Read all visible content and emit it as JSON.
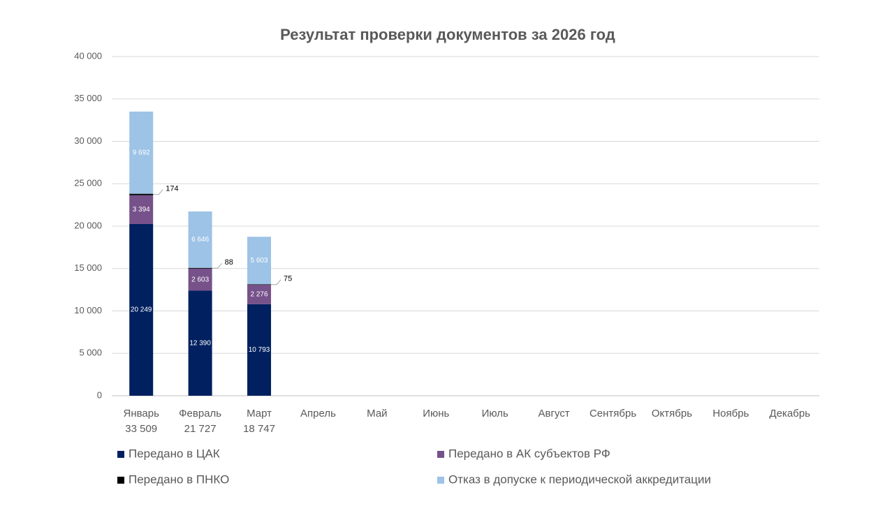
{
  "chart_data": {
    "type": "stacked_bar",
    "title": "Результат проверки документов за 2026 год",
    "categories": [
      "Январь",
      "Февраль",
      "Март",
      "Апрель",
      "Май",
      "Июнь",
      "Июль",
      "Август",
      "Сентябрь",
      "Октябрь",
      "Ноябрь",
      "Декабрь"
    ],
    "category_totals": [
      "33 509",
      "21 727",
      "18 747",
      null,
      null,
      null,
      null,
      null,
      null,
      null,
      null,
      null
    ],
    "series": [
      {
        "name": "Передано в ЦАК",
        "color": "#002060",
        "values": [
          20249,
          12390,
          10793,
          null,
          null,
          null,
          null,
          null,
          null,
          null,
          null,
          null
        ],
        "value_labels": [
          "20 249",
          "12 390",
          "10 793",
          null,
          null,
          null,
          null,
          null,
          null,
          null,
          null,
          null
        ]
      },
      {
        "name": "Передано в АК субъектов РФ",
        "color": "#76518a",
        "values": [
          3394,
          2603,
          2276,
          null,
          null,
          null,
          null,
          null,
          null,
          null,
          null,
          null
        ],
        "value_labels": [
          "3 394",
          "2 603",
          "2 276",
          null,
          null,
          null,
          null,
          null,
          null,
          null,
          null,
          null
        ]
      },
      {
        "name": "Передано в ПНКО",
        "color": "#000000",
        "values": [
          174,
          88,
          75,
          null,
          null,
          null,
          null,
          null,
          null,
          null,
          null,
          null
        ],
        "label_outside": true
      },
      {
        "name": "Отказ в допуске к периодической аккредитации",
        "color": "#9dc3e6",
        "values": [
          9692,
          6646,
          5603,
          null,
          null,
          null,
          null,
          null,
          null,
          null,
          null,
          null
        ],
        "value_labels": [
          "9 692",
          "6 646",
          "5 603",
          null,
          null,
          null,
          null,
          null,
          null,
          null,
          null,
          null
        ]
      }
    ],
    "ylim": [
      0,
      40000
    ],
    "yticks": [
      {
        "value": 0,
        "label": "0"
      },
      {
        "value": 5000,
        "label": "5 000"
      },
      {
        "value": 10000,
        "label": "10 000"
      },
      {
        "value": 15000,
        "label": "15 000"
      },
      {
        "value": 20000,
        "label": "20 000"
      },
      {
        "value": 25000,
        "label": "25 000"
      },
      {
        "value": 30000,
        "label": "30 000"
      },
      {
        "value": 35000,
        "label": "35 000"
      },
      {
        "value": 40000,
        "label": "40 000"
      }
    ],
    "grid": true
  }
}
